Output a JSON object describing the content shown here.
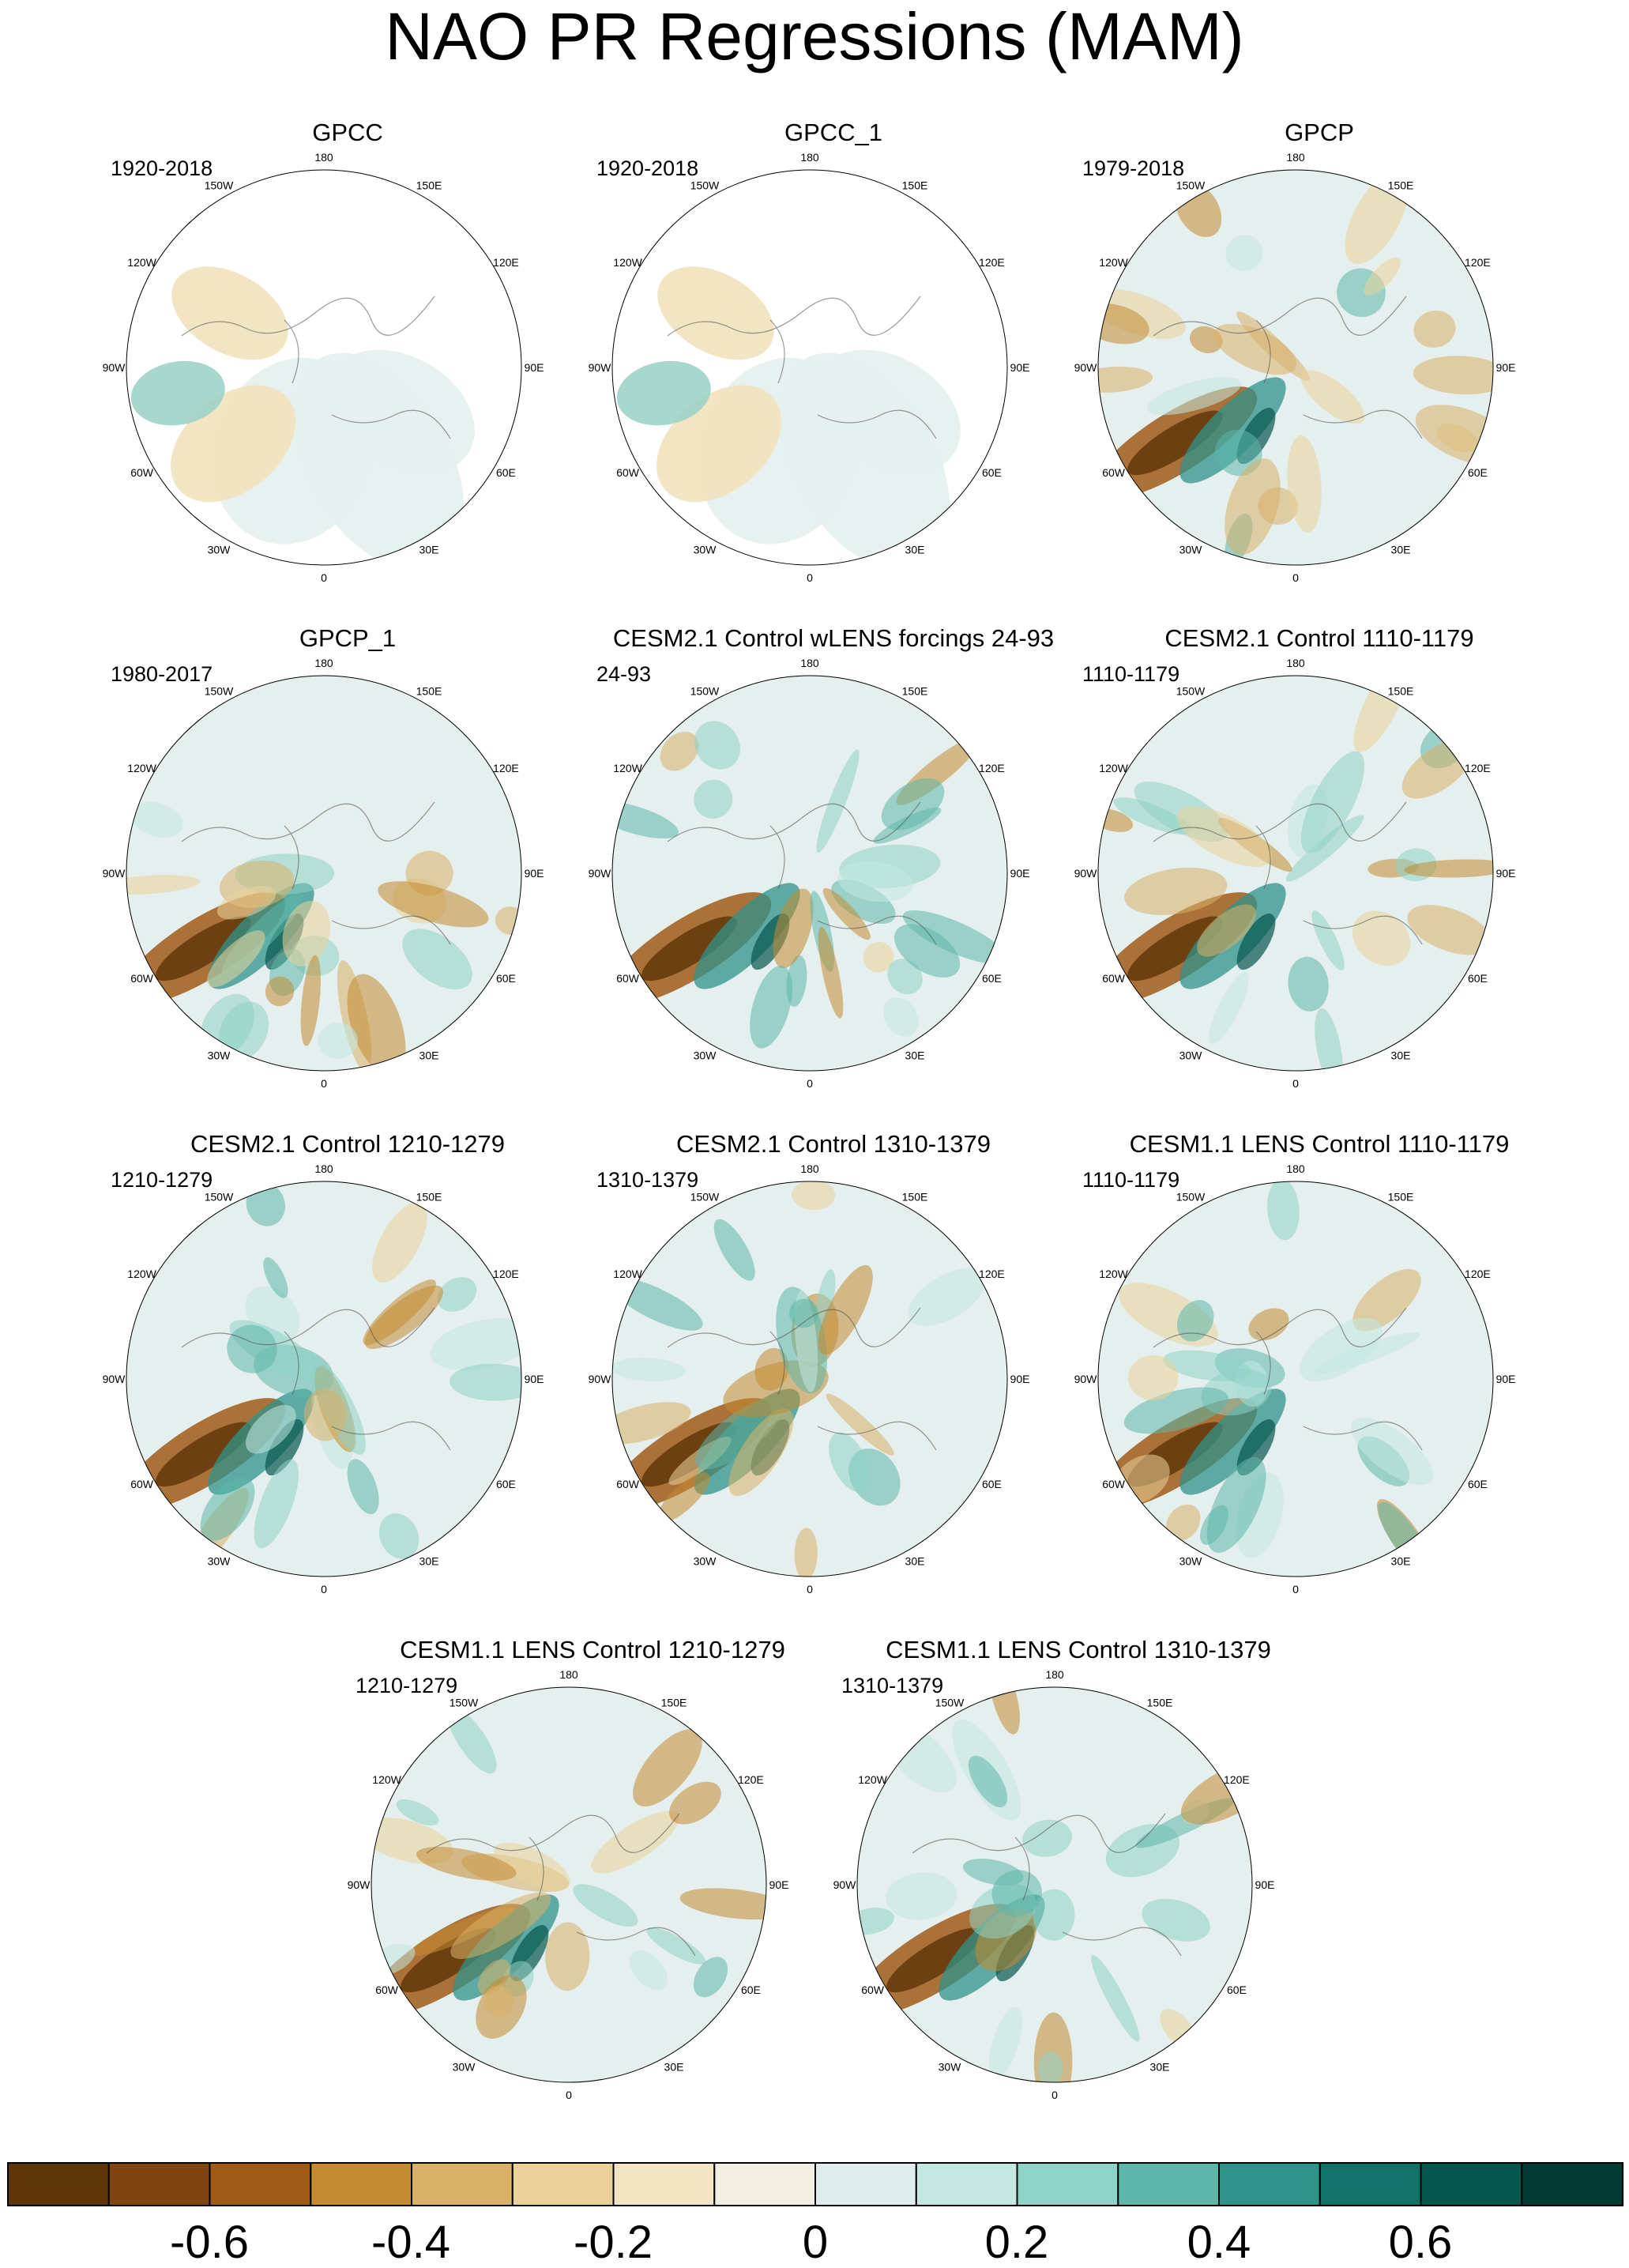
{
  "title": "NAO PR Regressions (MAM)",
  "lon_labels": [
    "180",
    "150E",
    "120E",
    "90E",
    "60E",
    "30E",
    "0",
    "30W",
    "60W",
    "90W",
    "120W",
    "150W"
  ],
  "panels": [
    {
      "title": "GPCC",
      "period": "1920-2018"
    },
    {
      "title": "GPCC_1",
      "period": "1920-2018"
    },
    {
      "title": "GPCP",
      "period": "1979-2018"
    },
    {
      "title": "GPCP_1",
      "period": "1980-2017"
    },
    {
      "title": "CESM2.1 Control wLENS forcings 24-93",
      "period": "24-93"
    },
    {
      "title": "CESM2.1 Control 1110-1179",
      "period": "1110-1179"
    },
    {
      "title": "CESM2.1 Control 1210-1279",
      "period": "1210-1279"
    },
    {
      "title": "CESM2.1 Control 1310-1379",
      "period": "1310-1379"
    },
    {
      "title": "CESM1.1 LENS Control 1110-1179",
      "period": "1110-1179"
    },
    {
      "title": "CESM1.1 LENS Control 1210-1279",
      "period": "1210-1279"
    },
    {
      "title": "CESM1.1 LENS Control 1310-1379",
      "period": "1310-1379"
    }
  ],
  "colorbar": {
    "colors": [
      "#5e3509",
      "#7f4510",
      "#a05a18",
      "#c38a32",
      "#d9b168",
      "#ead19a",
      "#f4e6c4",
      "#f2eee2",
      "#dfeeec",
      "#c2e8e1",
      "#8fd2c6",
      "#5db6a9",
      "#2f938a",
      "#137267",
      "#07564d",
      "#003a32"
    ],
    "labels": [
      "-0.6",
      "-0.4",
      "-0.2",
      "0",
      "0.2",
      "0.4",
      "0.6"
    ]
  }
}
